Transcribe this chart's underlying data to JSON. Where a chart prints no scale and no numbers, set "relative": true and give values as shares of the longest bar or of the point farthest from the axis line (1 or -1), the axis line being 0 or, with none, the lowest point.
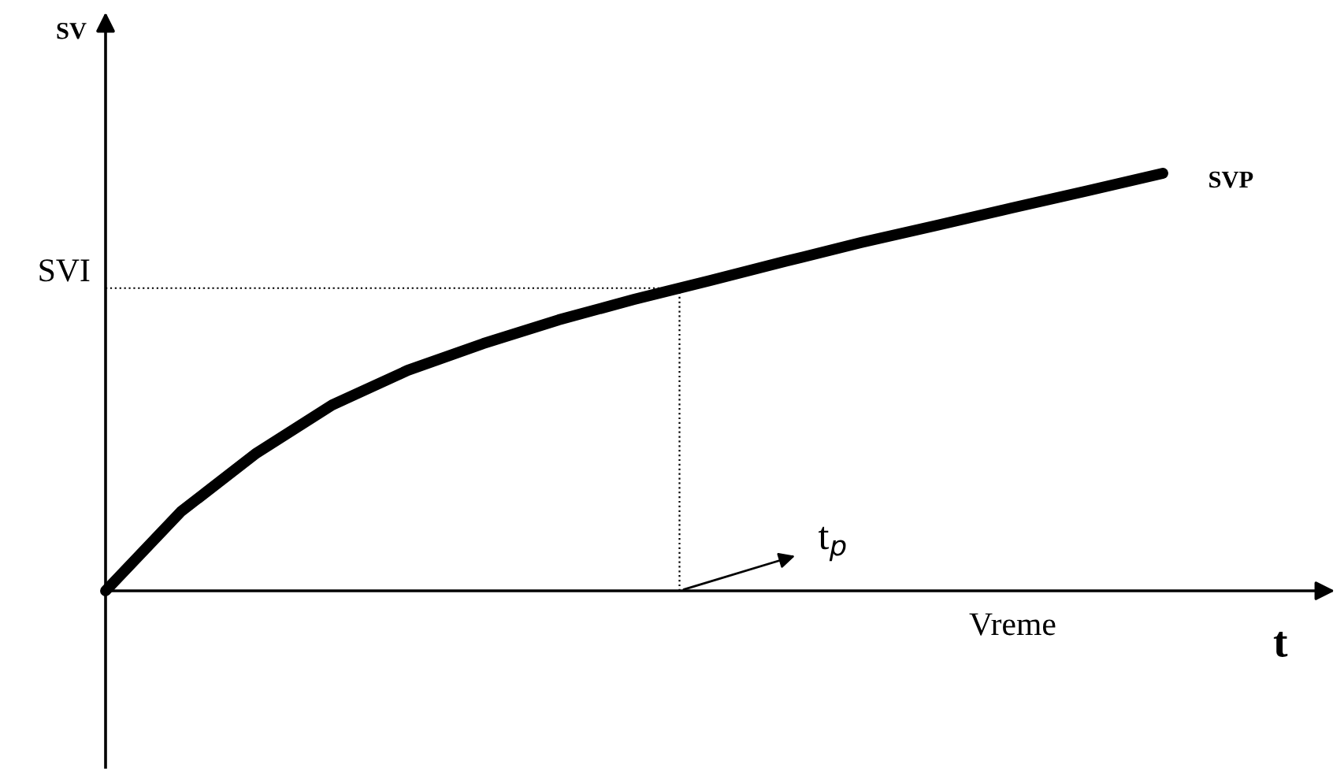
{
  "chart_data": {
    "type": "line",
    "relative": true,
    "xlabel": "t",
    "categories": [
      null,
      null,
      null,
      null,
      null,
      null,
      null,
      null,
      null,
      null,
      null,
      null,
      null,
      null,
      null
    ],
    "series": [
      {
        "name": "SVP",
        "color": "#000000",
        "values": [
          0,
          0.19,
          0.33,
          0.445,
          0.528,
          0.592,
          0.649,
          0.698,
          0.743,
          0.789,
          0.834,
          0.875,
          0.917,
          0.958,
          1
        ]
      }
    ],
    "ref_lines": [
      {
        "axis": "y",
        "value": 0.725,
        "label": "SVI",
        "line_style": "dotted",
        "color": "#000000"
      }
    ],
    "annotations": [
      "SV",
      "Vreme",
      "t$_{p}$"
    ],
    "legend": false,
    "tick_labels": false,
    "marker": "none",
    "line_style": "solid"
  }
}
